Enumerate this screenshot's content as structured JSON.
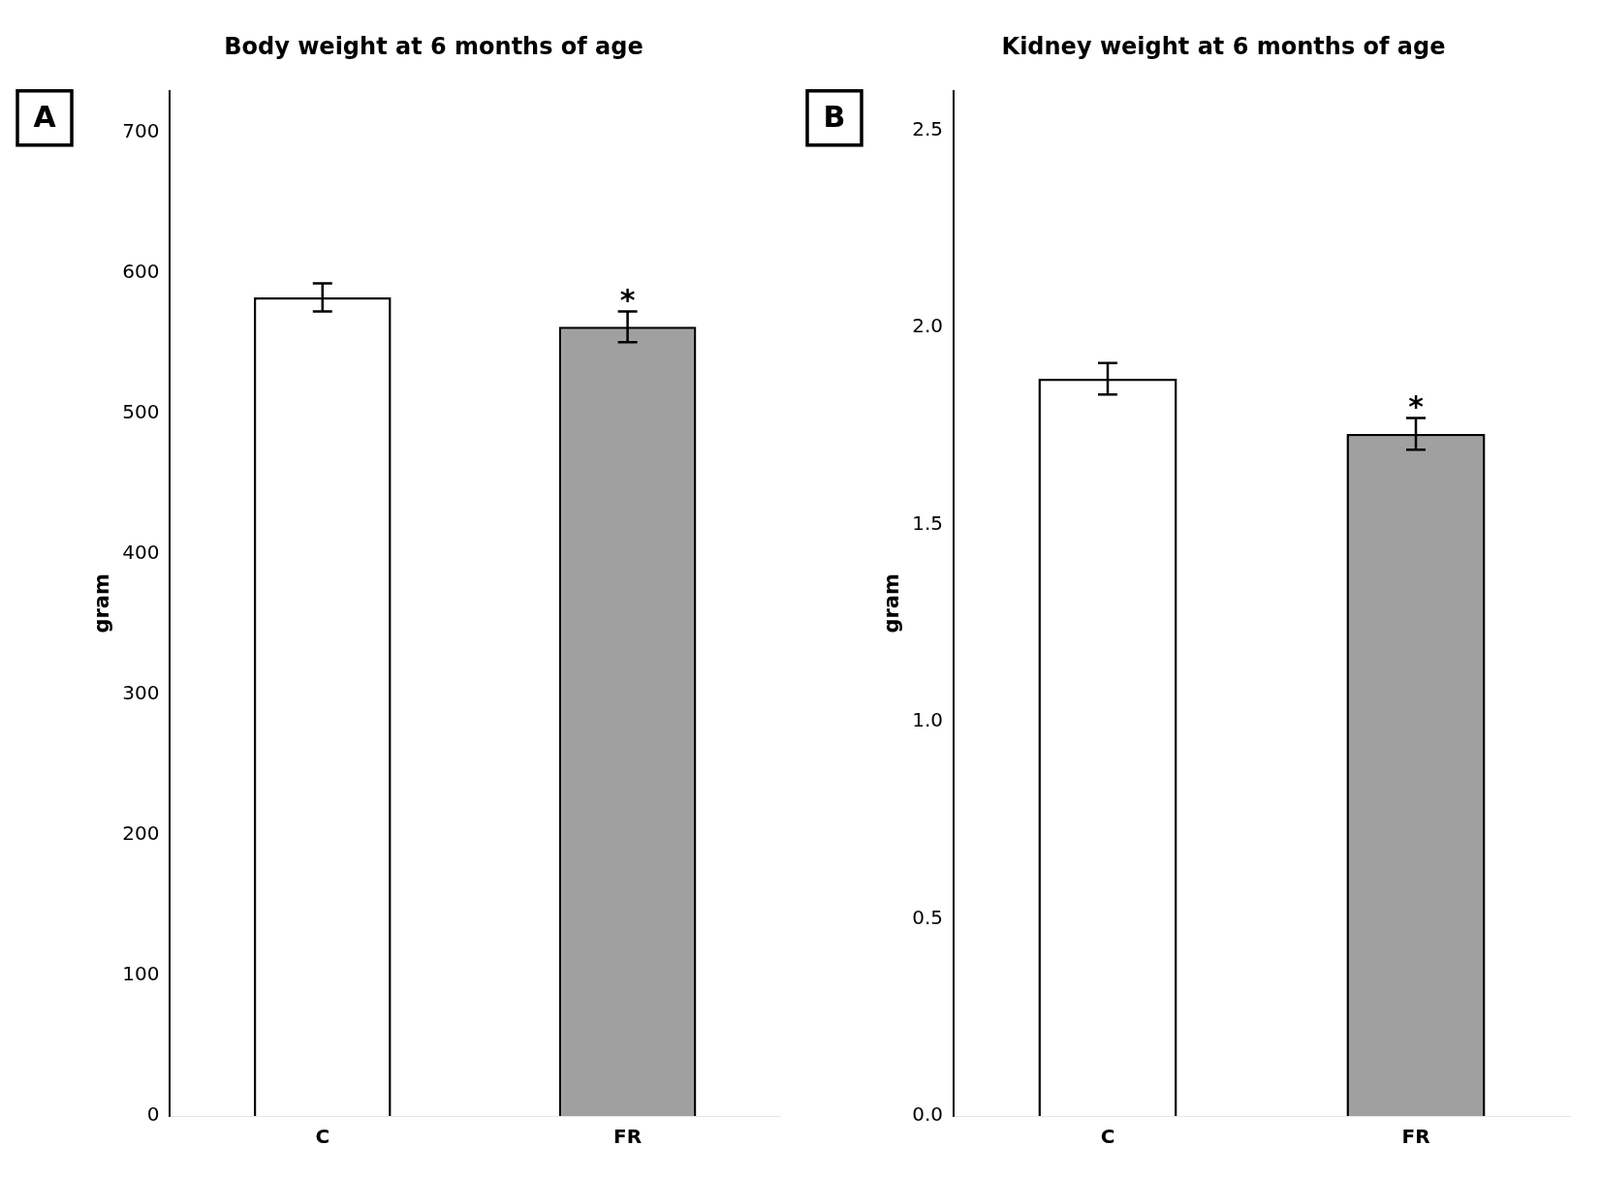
{
  "chart_data": [
    {
      "type": "bar",
      "title": "Body weight at 6 months of age",
      "categories": [
        "C",
        "FR"
      ],
      "values": [
        583,
        562
      ],
      "errors": [
        10,
        11
      ],
      "colors": [
        "#ffffff",
        "#a0a0a0"
      ],
      "ylabel": "gram",
      "ylim": [
        0,
        730
      ],
      "yticks": [
        0,
        100,
        200,
        300,
        400,
        500,
        600,
        700
      ],
      "annotations": [
        {
          "category": "FR",
          "text": "*"
        }
      ],
      "panel_label": "A",
      "grid": false
    },
    {
      "type": "bar",
      "title": "Kidney weight at 6 months of age",
      "categories": [
        "C",
        "FR"
      ],
      "values": [
        1.87,
        1.73
      ],
      "errors": [
        0.04,
        0.04
      ],
      "colors": [
        "#ffffff",
        "#a0a0a0"
      ],
      "ylabel": "gram",
      "ylim": [
        0,
        2.6
      ],
      "yticks": [
        {
          "value": 0,
          "label": "0.0"
        },
        0.5,
        {
          "value": 1,
          "label": "1.0"
        },
        1.5,
        {
          "value": 2,
          "label": "2.0"
        },
        2.5
      ],
      "annotations": [
        {
          "category": "FR",
          "text": "*"
        }
      ],
      "panel_label": "B",
      "grid": false
    }
  ]
}
